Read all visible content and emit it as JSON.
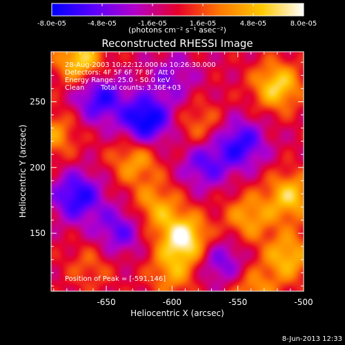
{
  "colorbar": {
    "tick_labels": [
      "-8.0e-05",
      "-4.8e-05",
      "-1.6e-05",
      "1.6e-05",
      "4.8e-05",
      "8.0e-05"
    ],
    "tick_values": [
      -8e-05,
      -4.8e-05,
      -1.6e-05,
      1.6e-05,
      4.8e-05,
      8e-05
    ],
    "range": [
      -8e-05,
      8e-05
    ],
    "unit_label": "(photons cm⁻² s⁻¹ asec⁻²)",
    "colors": [
      "#0000ff",
      "#5a00ff",
      "#b400c8",
      "#e6002a",
      "#ff7800",
      "#ffc800",
      "#ffffff"
    ]
  },
  "chart_data": {
    "type": "heatmap",
    "title": "Reconstructed RHESSI Image",
    "xlabel": "Heliocentric X (arcsec)",
    "ylabel": "Heliocentric Y (arcsec)",
    "xlim": [
      -692,
      -500
    ],
    "ylim": [
      106,
      288
    ],
    "x_ticks": [
      -650,
      -600,
      -550,
      -500
    ],
    "x_tick_labels": [
      "-650",
      "-600",
      "-550",
      "-500"
    ],
    "y_ticks": [
      150,
      200,
      250
    ],
    "y_tick_labels": [
      "150",
      "200",
      "250"
    ],
    "legend": "none",
    "annotations": {
      "time_range": "28-Aug-2003 10:22:12.000 to 10:26:30.000",
      "detectors": "Detectors: 4F 5F 6F 7F 8F, Att 0",
      "energy_range": "Energy Range: 25.0 - 50.0 keV",
      "method": "Clean",
      "total_counts": "Total counts: 3.36E+03",
      "peak_position": "Position of Peak = [-591,146]"
    },
    "peak": [
      -591,
      146
    ],
    "features": [
      {
        "x": -620,
        "y": 236,
        "value": -8e-05
      },
      {
        "x": -672,
        "y": 178,
        "value": -6.5e-05
      },
      {
        "x": -655,
        "y": 253,
        "value": -6e-05
      },
      {
        "x": -548,
        "y": 218,
        "value": -6e-05
      },
      {
        "x": -575,
        "y": 202,
        "value": -4.5e-05
      },
      {
        "x": -640,
        "y": 152,
        "value": -4.5e-05
      },
      {
        "x": -562,
        "y": 128,
        "value": -4e-05
      },
      {
        "x": -600,
        "y": 268,
        "value": -3e-05
      },
      {
        "x": -591,
        "y": 146,
        "value": 8e-05
      },
      {
        "x": -520,
        "y": 262,
        "value": 6.5e-05
      },
      {
        "x": -670,
        "y": 282,
        "value": 6.5e-05
      },
      {
        "x": -510,
        "y": 178,
        "value": 6e-05
      },
      {
        "x": -512,
        "y": 132,
        "value": 5.5e-05
      },
      {
        "x": -628,
        "y": 205,
        "value": 4.5e-05
      },
      {
        "x": -542,
        "y": 162,
        "value": 4.5e-05
      },
      {
        "x": -690,
        "y": 225,
        "value": 4e-05
      },
      {
        "x": -612,
        "y": 170,
        "value": 4.5e-05
      },
      {
        "x": -600,
        "y": 120,
        "value": 4e-05
      },
      {
        "x": -538,
        "y": 106,
        "value": 4e-05
      },
      {
        "x": -662,
        "y": 125,
        "value": 2.5e-05
      },
      {
        "x": -578,
        "y": 232,
        "value": 3e-05
      }
    ]
  },
  "timestamp": "8-Jun-2013 12:33"
}
